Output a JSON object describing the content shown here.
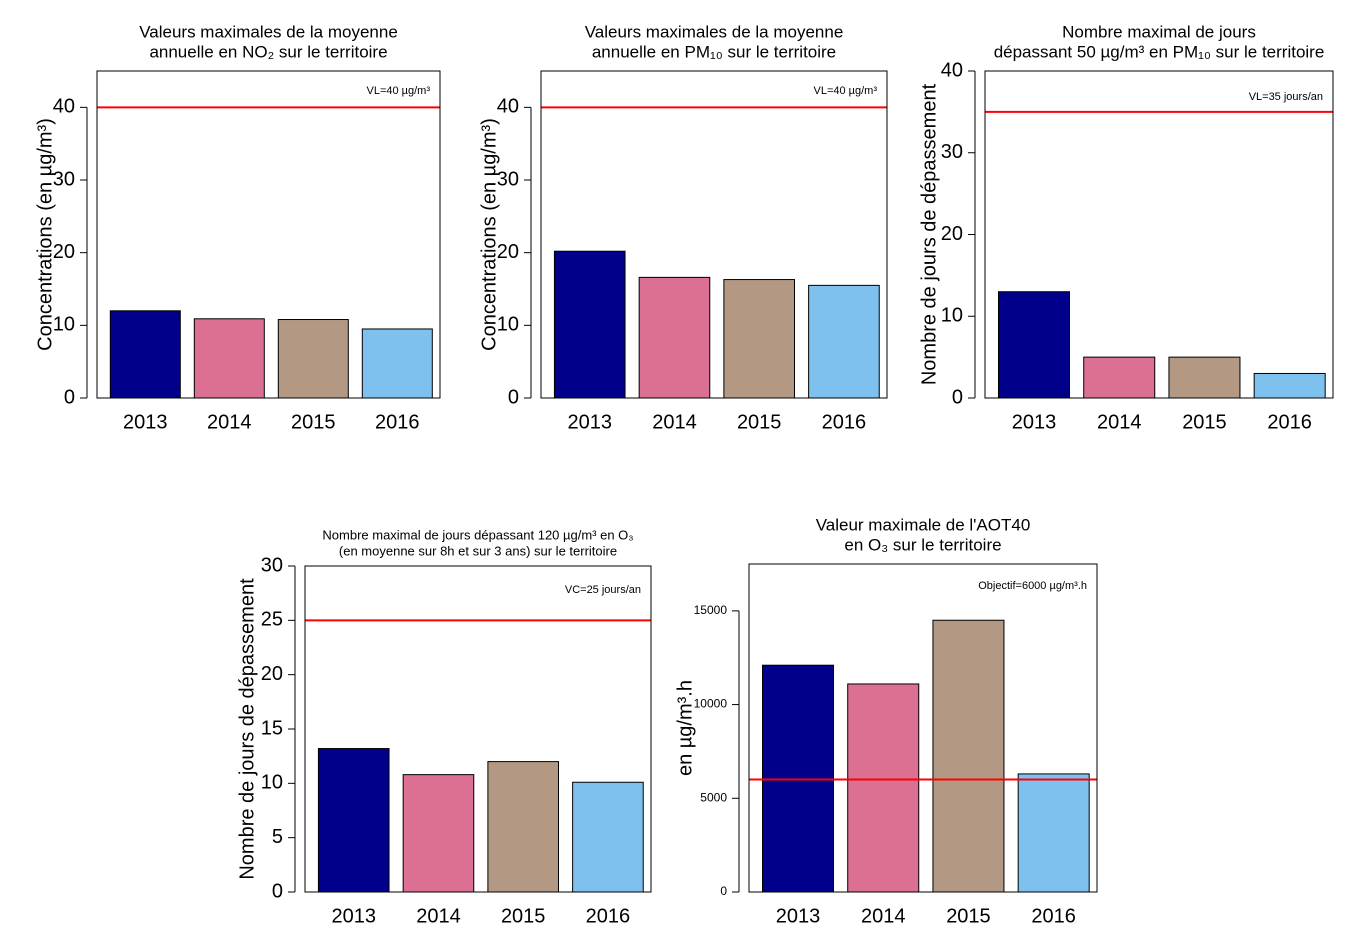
{
  "chart_data": [
    {
      "type": "bar",
      "title": [
        "Valeurs maximales de la moyenne",
        "annuelle en NO₂ sur le territoire"
      ],
      "ylabel": "Concentrations (en µg/m³)",
      "categories": [
        "2013",
        "2014",
        "2015",
        "2016"
      ],
      "values": [
        12.0,
        10.9,
        10.8,
        9.5
      ],
      "colors": [
        "#00008b",
        "#db7093",
        "#b39983",
        "#7ec0ee"
      ],
      "ylim": [
        0,
        45
      ],
      "yticks": [
        0,
        10,
        20,
        30,
        40
      ],
      "reference_line": {
        "value": 40,
        "label": "VL=40 µg/m³",
        "color": "#ff0000"
      }
    },
    {
      "type": "bar",
      "title": [
        "Valeurs maximales de la moyenne",
        "annuelle en PM₁₀ sur le territoire"
      ],
      "ylabel": "Concentrations (en µg/m³)",
      "categories": [
        "2013",
        "2014",
        "2015",
        "2016"
      ],
      "values": [
        20.2,
        16.6,
        16.3,
        15.5
      ],
      "colors": [
        "#00008b",
        "#db7093",
        "#b39983",
        "#7ec0ee"
      ],
      "ylim": [
        0,
        45
      ],
      "yticks": [
        0,
        10,
        20,
        30,
        40
      ],
      "reference_line": {
        "value": 40,
        "label": "VL=40 µg/m³",
        "color": "#ff0000"
      }
    },
    {
      "type": "bar",
      "title": [
        "Nombre maximal de jours",
        "dépassant 50 µg/m³ en PM₁₀ sur le territoire"
      ],
      "ylabel": "Nombre de jours de dépassement",
      "categories": [
        "2013",
        "2014",
        "2015",
        "2016"
      ],
      "values": [
        13,
        5,
        5,
        3
      ],
      "colors": [
        "#00008b",
        "#db7093",
        "#b39983",
        "#7ec0ee"
      ],
      "ylim": [
        0,
        40
      ],
      "yticks": [
        0,
        10,
        20,
        30,
        40
      ],
      "reference_line": {
        "value": 35,
        "label": "VL=35 jours/an",
        "color": "#ff0000"
      }
    },
    {
      "type": "bar",
      "title": [
        "Nombre maximal de jours dépassant 120 µg/m³ en O₃",
        "(en moyenne sur 8h et sur 3 ans) sur le territoire"
      ],
      "ylabel": "Nombre de jours de dépassement",
      "categories": [
        "2013",
        "2014",
        "2015",
        "2016"
      ],
      "values": [
        13.2,
        10.8,
        12.0,
        10.1
      ],
      "colors": [
        "#00008b",
        "#db7093",
        "#b39983",
        "#7ec0ee"
      ],
      "ylim": [
        0,
        30
      ],
      "yticks": [
        0,
        5,
        10,
        15,
        20,
        25,
        30
      ],
      "reference_line": {
        "value": 25,
        "label": "VC=25 jours/an",
        "color": "#ff0000"
      }
    },
    {
      "type": "bar",
      "title": [
        "Valeur maximale de l'AOT40",
        "en O₃ sur le territoire"
      ],
      "ylabel": "en µg/m³.h",
      "categories": [
        "2013",
        "2014",
        "2015",
        "2016"
      ],
      "values": [
        12100,
        11100,
        14500,
        6300
      ],
      "colors": [
        "#00008b",
        "#db7093",
        "#b39983",
        "#7ec0ee"
      ],
      "ylim": [
        0,
        17500
      ],
      "yticks": [
        0,
        5000,
        10000,
        15000
      ],
      "reference_line": {
        "value": 6000,
        "label": "Objectif=6000 µg/m³.h",
        "color": "#ff0000"
      }
    }
  ]
}
